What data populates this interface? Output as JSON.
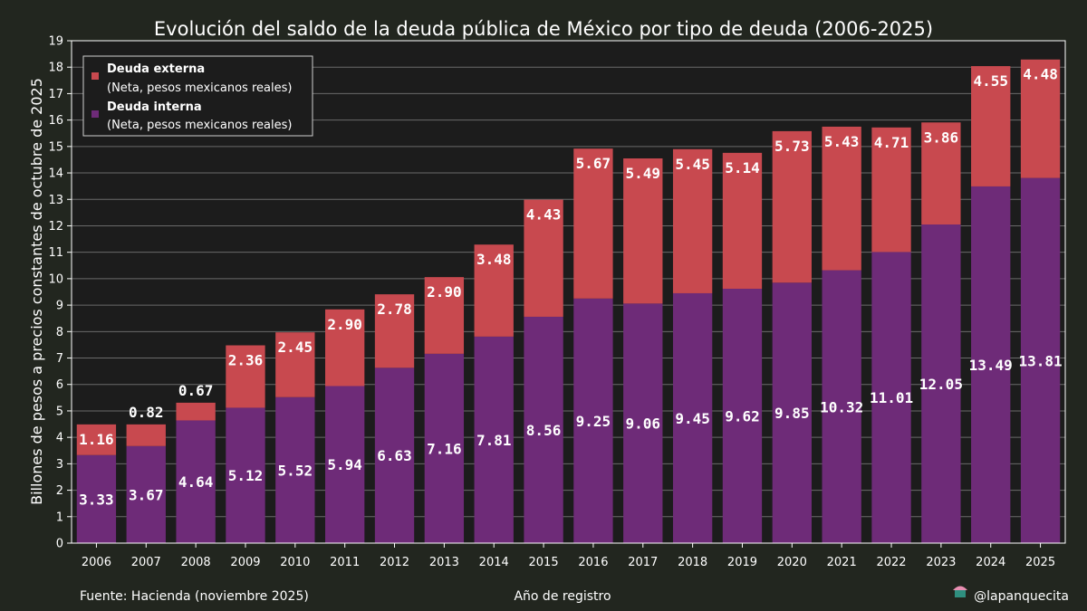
{
  "chart_data": {
    "type": "bar",
    "stacked": true,
    "title": "Evolución del saldo de la deuda pública de México por tipo de deuda (2006-2025)",
    "xlabel": "Año de registro",
    "ylabel": "Billones de pesos a precios constantes de octubre de 2025",
    "ylim": [
      0,
      19
    ],
    "yticks": [
      0,
      1,
      2,
      3,
      4,
      5,
      6,
      7,
      8,
      9,
      10,
      11,
      12,
      13,
      14,
      15,
      16,
      17,
      18,
      19
    ],
    "grid": true,
    "legend_position": "top-left",
    "categories": [
      "2006",
      "2007",
      "2008",
      "2009",
      "2010",
      "2011",
      "2012",
      "2013",
      "2014",
      "2015",
      "2016",
      "2017",
      "2018",
      "2019",
      "2020",
      "2021",
      "2022",
      "2023",
      "2024",
      "2025"
    ],
    "series": [
      {
        "name": "Deuda interna",
        "subtitle": "(Neta, pesos mexicanos reales)",
        "color": "#6e2b78",
        "values": [
          3.33,
          3.67,
          4.64,
          5.12,
          5.52,
          5.94,
          6.63,
          7.16,
          7.81,
          8.56,
          9.25,
          9.06,
          9.45,
          9.62,
          9.85,
          10.32,
          11.01,
          12.05,
          13.49,
          13.81
        ],
        "labels": [
          "3.33",
          "3.67",
          "4.64",
          "5.12",
          "5.52",
          "5.94",
          "6.63",
          "7.16",
          "7.81",
          "8.56",
          "9.25",
          "9.06",
          "9.45",
          "9.62",
          "9.85",
          "10.32",
          "11.01",
          "12.05",
          "13.49",
          "13.81"
        ]
      },
      {
        "name": "Deuda externa",
        "subtitle": "(Neta, pesos mexicanos reales)",
        "color": "#c8494f",
        "values": [
          1.16,
          0.82,
          0.67,
          2.36,
          2.45,
          2.9,
          2.78,
          2.9,
          3.48,
          4.43,
          5.67,
          5.49,
          5.45,
          5.14,
          5.73,
          5.43,
          4.71,
          3.86,
          4.55,
          4.48
        ],
        "labels": [
          "1.16",
          "0.82",
          "0.67",
          "2.36",
          "2.45",
          "2.90",
          "2.78",
          "2.90",
          "3.48",
          "4.43",
          "5.67",
          "5.49",
          "5.45",
          "5.14",
          "5.73",
          "5.43",
          "4.71",
          "3.86",
          "4.55",
          "4.48"
        ]
      }
    ]
  },
  "footer": {
    "source": "Fuente: Hacienda (noviembre 2025)",
    "credit": "@lapanquecita"
  },
  "colors": {
    "background": "#22261f",
    "plot_background": "#1c1c1c",
    "grid": "#6a6a6a"
  }
}
